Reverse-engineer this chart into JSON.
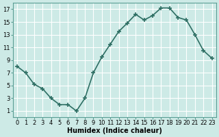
{
  "x": [
    0,
    1,
    2,
    3,
    4,
    5,
    6,
    7,
    8,
    9,
    10,
    11,
    12,
    13,
    14,
    15,
    16,
    17,
    18,
    19,
    20,
    21,
    22,
    23
  ],
  "y": [
    8,
    7,
    5.2,
    4.5,
    3,
    2,
    2,
    1,
    3,
    7,
    9.5,
    11.5,
    13.5,
    14.8,
    16.2,
    15.3,
    16,
    17.2,
    17.2,
    15.7,
    15.3,
    13,
    10.5,
    9.3
  ],
  "line_color": "#2d6e63",
  "marker": "+",
  "marker_size": 4,
  "marker_lw": 1.2,
  "line_width": 1.2,
  "bg_color": "#cdeae6",
  "grid_color_major": "#ffffff",
  "grid_color_minor": "#e8f5f3",
  "xlabel": "Humidex (Indice chaleur)",
  "xlabel_fontsize": 7,
  "yticks": [
    1,
    3,
    5,
    7,
    9,
    11,
    13,
    15,
    17
  ],
  "xticks": [
    0,
    1,
    2,
    3,
    4,
    5,
    6,
    7,
    8,
    9,
    10,
    11,
    12,
    13,
    14,
    15,
    16,
    17,
    18,
    19,
    20,
    21,
    22,
    23
  ],
  "ylim": [
    0,
    18
  ],
  "xlim": [
    -0.5,
    23.5
  ],
  "tick_fontsize": 6,
  "spine_color": "#5a9e94",
  "tick_color": "#5a9e94"
}
